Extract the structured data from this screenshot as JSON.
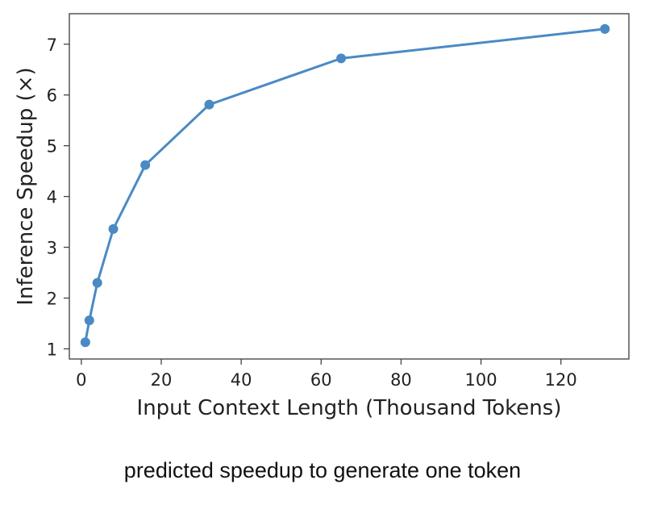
{
  "caption": "predicted speedup to generate one token",
  "chart_data": {
    "type": "line",
    "title": "",
    "xlabel": "Input Context Length (Thousand Tokens)",
    "ylabel": "Inference Speedup (×)",
    "xlim": [
      -3,
      137
    ],
    "ylim": [
      0.8,
      7.6
    ],
    "x_ticks": [
      0,
      20,
      40,
      60,
      80,
      100,
      120
    ],
    "y_ticks": [
      1,
      2,
      3,
      4,
      5,
      6,
      7
    ],
    "grid": false,
    "series": [
      {
        "color": "#4a8ac4",
        "x": [
          1,
          2,
          4,
          8,
          16,
          32,
          65,
          131
        ],
        "y": [
          1.13,
          1.56,
          2.3,
          3.36,
          4.62,
          5.81,
          6.72,
          7.3
        ]
      }
    ]
  }
}
